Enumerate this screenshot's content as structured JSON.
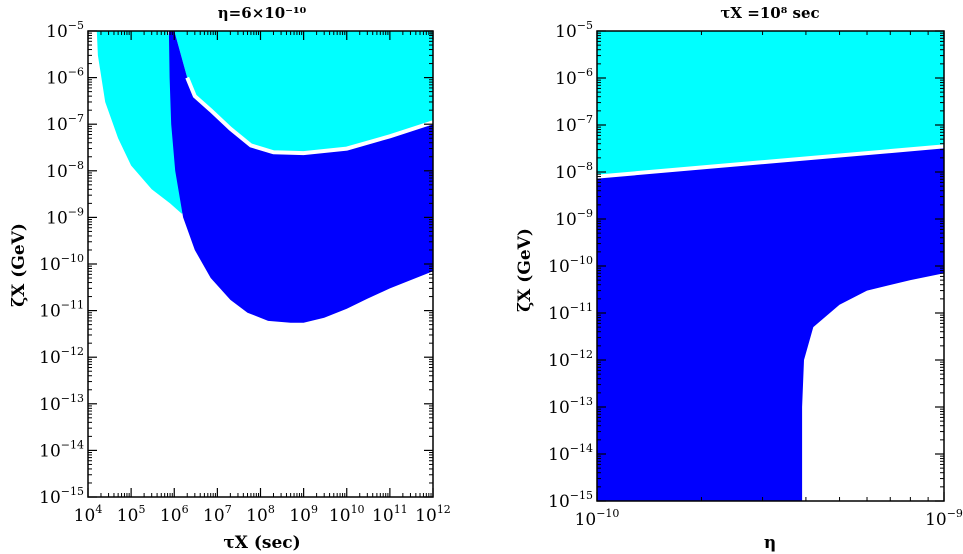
{
  "colors": {
    "excluded_light": "#00FFFF",
    "excluded_dark": "#0000FF",
    "boundary": "#FFFFFF",
    "axes": "#000000"
  },
  "chart_data": [
    {
      "type": "area",
      "title": "η=6×10⁻¹⁰",
      "xlabel": "τX (sec)",
      "ylabel": "ζX (GeV)",
      "xscale": "log",
      "yscale": "log",
      "xlim": [
        10000.0,
        1000000000000.0
      ],
      "ylim": [
        1e-15,
        1e-05
      ],
      "x_ticks": [
        "10^4",
        "10^5",
        "10^6",
        "10^7",
        "10^8",
        "10^9",
        "10^10",
        "10^11",
        "10^12"
      ],
      "y_ticks": [
        "10^-15",
        "10^-14",
        "10^-13",
        "10^-12",
        "10^-11",
        "10^-10",
        "10^-9",
        "10^-8",
        "10^-7",
        "10^-6",
        "10^-5"
      ],
      "series": [
        {
          "color": "light",
          "points": [
            [
              16000.0,
              1e-05
            ],
            [
              17000.0,
              3e-06
            ],
            [
              25000.0,
              3e-07
            ],
            [
              50000.0,
              5e-08
            ],
            [
              100000.0,
              1.3e-08
            ],
            [
              300000.0,
              4e-09
            ],
            [
              800000.0,
              2e-09
            ],
            [
              1500000.0,
              1.2e-09
            ],
            [
              1900000.0,
              1.5e-09
            ],
            [
              1900000.0,
              3e-08
            ],
            [
              1400000.0,
              6e-07
            ],
            [
              1000000.0,
              3e-06
            ],
            [
              700000.0,
              1e-05
            ]
          ]
        },
        {
          "color": "light",
          "points": [
            [
              1000000.0,
              1e-05
            ],
            [
              2000000.0,
              1e-06
            ],
            [
              3000000.0,
              4e-07
            ],
            [
              7000000.0,
              2e-07
            ],
            [
              20000000.0,
              8e-08
            ],
            [
              60000000.0,
              3.5e-08
            ],
            [
              200000000.0,
              2.5e-08
            ],
            [
              1000000000.0,
              2.4e-08
            ],
            [
              10000000000.0,
              3e-08
            ],
            [
              100000000000.0,
              5.5e-08
            ],
            [
              1000000000000.0,
              1.1e-07
            ],
            [
              1000000000000.0,
              1e-05
            ]
          ]
        },
        {
          "color": "dark",
          "points": [
            [
              750000.0,
              1e-05
            ],
            [
              1000000.0,
              1e-05
            ],
            [
              2000000.0,
              1e-06
            ],
            [
              3000000.0,
              4e-07
            ],
            [
              7000000.0,
              2e-07
            ],
            [
              20000000.0,
              8e-08
            ],
            [
              60000000.0,
              3.5e-08
            ],
            [
              200000000.0,
              2.5e-08
            ],
            [
              1000000000.0,
              2.4e-08
            ],
            [
              10000000000.0,
              3e-08
            ],
            [
              100000000000.0,
              5.5e-08
            ],
            [
              1000000000000.0,
              1.1e-07
            ],
            [
              1000000000000.0,
              7e-11
            ],
            [
              100000000000.0,
              3e-11
            ],
            [
              30000000000.0,
              1.8e-11
            ],
            [
              10000000000.0,
              1.1e-11
            ],
            [
              3000000000.0,
              7e-12
            ],
            [
              1000000000.0,
              5.5e-12
            ],
            [
              500000000.0,
              5.5e-12
            ],
            [
              150000000.0,
              6e-12
            ],
            [
              50000000.0,
              9e-12
            ],
            [
              20000000.0,
              1.7e-11
            ],
            [
              7000000.0,
              5e-11
            ],
            [
              3000000.0,
              2e-10
            ],
            [
              1600000.0,
              1e-09
            ],
            [
              1050000.0,
              1e-08
            ],
            [
              850000.0,
              1e-07
            ],
            [
              780000.0,
              1e-06
            ]
          ]
        }
      ]
    },
    {
      "type": "area",
      "title": "τX =10⁸ sec",
      "xlabel": "η",
      "ylabel": "ζX (GeV)",
      "xscale": "log",
      "yscale": "log",
      "xlim": [
        1e-10,
        1e-09
      ],
      "ylim": [
        1e-15,
        1e-05
      ],
      "x_ticks": [
        "10^-10",
        "10^-9"
      ],
      "y_ticks": [
        "10^-15",
        "10^-14",
        "10^-13",
        "10^-12",
        "10^-11",
        "10^-10",
        "10^-9",
        "10^-8",
        "10^-7",
        "10^-6",
        "10^-5"
      ],
      "series": [
        {
          "color": "light",
          "points": [
            [
              1e-10,
              1e-05
            ],
            [
              1e-09,
              1e-05
            ],
            [
              1e-09,
              3.5e-08
            ],
            [
              1e-10,
              8e-09
            ]
          ]
        },
        {
          "color": "dark",
          "points": [
            [
              1e-10,
              8e-09
            ],
            [
              1e-09,
              3.5e-08
            ],
            [
              1e-09,
              7e-11
            ],
            [
              8e-10,
              5e-11
            ],
            [
              6e-10,
              3e-11
            ],
            [
              5e-10,
              1.5e-11
            ],
            [
              4.2e-10,
              5e-12
            ],
            [
              3.95e-10,
              1e-12
            ],
            [
              3.9e-10,
              1e-13
            ],
            [
              3.9e-10,
              1e-15
            ],
            [
              1e-10,
              1e-15
            ]
          ]
        }
      ]
    }
  ]
}
